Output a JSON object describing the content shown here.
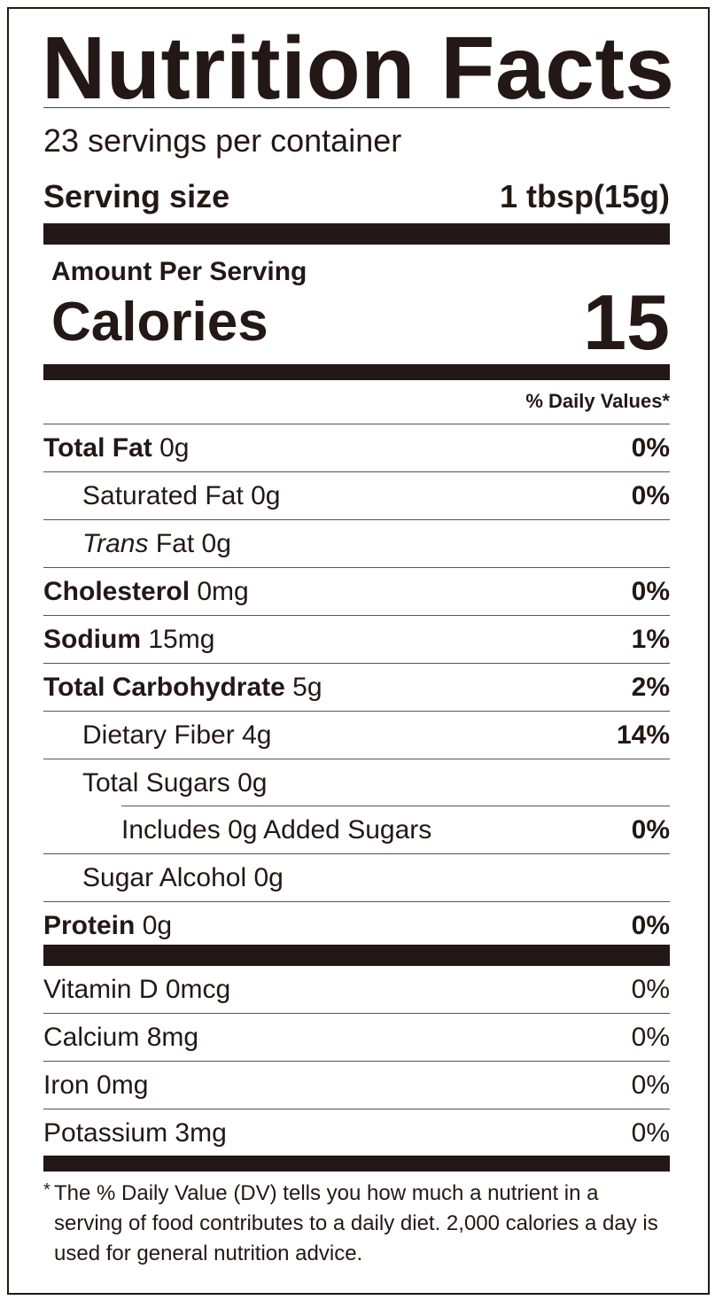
{
  "title": "Nutrition Facts",
  "servings_per_container": "23 servings per container",
  "serving_size": {
    "label": "Serving size",
    "value": "1 tbsp(15g)"
  },
  "amount_per_serving": "Amount Per Serving",
  "calories": {
    "label": "Calories",
    "value": "15"
  },
  "daily_values_header": "% Daily Values*",
  "nutrients": [
    {
      "name": "Total Fat",
      "amount": "0g",
      "dv": "0%",
      "bold": true,
      "indent": 0
    },
    {
      "name": "Saturated Fat",
      "amount": "0g",
      "dv": "0%",
      "bold": false,
      "indent": 1
    },
    {
      "name": "Trans",
      "name_suffix": "Fat",
      "amount": "0g",
      "dv": "",
      "bold": false,
      "indent": 1
    },
    {
      "name": "Cholesterol",
      "amount": "0mg",
      "dv": "0%",
      "bold": true,
      "indent": 0
    },
    {
      "name": "Sodium",
      "amount": "15mg",
      "dv": "1%",
      "bold": true,
      "indent": 0
    },
    {
      "name": "Total Carbohydrate",
      "amount": "5g",
      "dv": "2%",
      "bold": true,
      "indent": 0
    },
    {
      "name": "Dietary Fiber",
      "amount": "4g",
      "dv": "14%",
      "bold": false,
      "indent": 1
    },
    {
      "name": "Total Sugars",
      "amount": "0g",
      "dv": "",
      "bold": false,
      "indent": 1
    },
    {
      "name": "Includes 0g Added Sugars",
      "amount": "",
      "dv": "0%",
      "bold": false,
      "indent": 2
    },
    {
      "name": "Sugar Alcohol",
      "amount": "0g",
      "dv": "",
      "bold": false,
      "indent": 1
    },
    {
      "name": "Protein",
      "amount": "0g",
      "dv": "0%",
      "bold": true,
      "indent": 0
    }
  ],
  "vitamins": [
    {
      "name": "Vitamin D 0mcg",
      "dv": "0%"
    },
    {
      "name": "Calcium 8mg",
      "dv": "0%"
    },
    {
      "name": "Iron 0mg",
      "dv": "0%"
    },
    {
      "name": "Potassium 3mg",
      "dv": "0%"
    }
  ],
  "footnote": {
    "asterisk": "*",
    "text": "The % Daily Value (DV) tells you how much a nutrient in a serving of food contributes to a daily diet. 2,000 calories a day is used for general nutrition advice."
  },
  "colors": {
    "ink": "#231815",
    "background": "#ffffff"
  }
}
